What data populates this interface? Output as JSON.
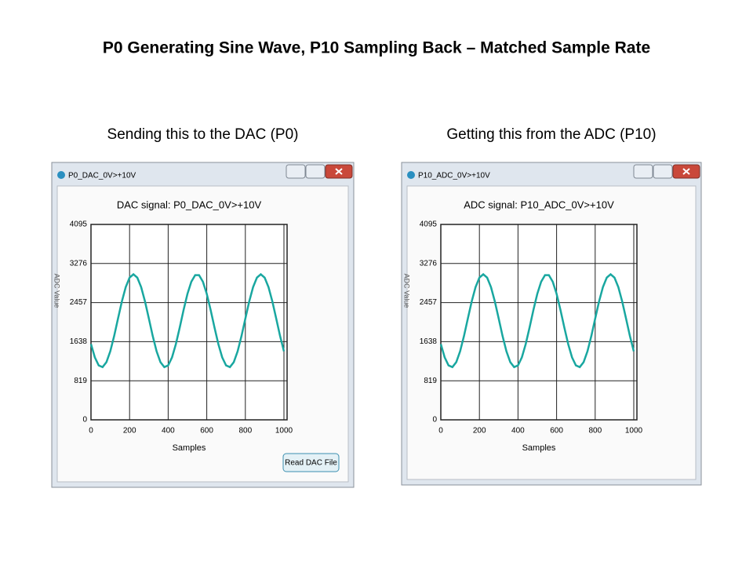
{
  "title": "P0 Generating Sine Wave, P10 Sampling Back – Matched Sample Rate",
  "panels": [
    {
      "caption": "Sending this to the DAC (P0)",
      "window_title": "P0_DAC_0V>+10V",
      "button": "Read DAC File"
    },
    {
      "caption": "Getting this from the ADC (P10)",
      "window_title": "P10_ADC_0V>+10V"
    }
  ],
  "chart_data": [
    {
      "type": "line",
      "title": "DAC signal: P0_DAC_0V>+10V",
      "xlabel": "Samples",
      "ylabel": "ADC Value",
      "x": [
        0,
        20,
        40,
        60,
        80,
        100,
        120,
        140,
        160,
        180,
        200,
        220,
        240,
        260,
        280,
        300,
        320,
        340,
        360,
        380,
        400,
        420,
        440,
        460,
        480,
        500,
        520,
        540,
        560,
        580,
        600,
        620,
        640,
        660,
        680,
        700,
        720,
        740,
        760,
        780,
        800,
        820,
        840,
        860,
        880,
        900,
        920,
        940,
        960,
        980,
        1000
      ],
      "series": [
        {
          "color": "#19a7a0",
          "values": [
            1588,
            1309,
            1140,
            1105,
            1208,
            1436,
            1756,
            2121,
            2480,
            2781,
            2980,
            3050,
            2980,
            2781,
            2480,
            2121,
            1756,
            1436,
            1208,
            1105,
            1140,
            1309,
            1588,
            1936,
            2304,
            2641,
            2895,
            3032,
            3032,
            2895,
            2641,
            2304,
            1936,
            1588,
            1309,
            1140,
            1105,
            1208,
            1436,
            1756,
            2121,
            2480,
            2781,
            2980,
            3050,
            2980,
            2781,
            2480,
            2121,
            1756,
            1436
          ]
        }
      ],
      "xlim": [
        0,
        1000
      ],
      "ylim": [
        0,
        4095
      ],
      "xticks": [
        0,
        200,
        400,
        600,
        800,
        1000
      ],
      "yticks": [
        0,
        819,
        1638,
        2457,
        3276,
        4095
      ],
      "grid": true
    },
    {
      "type": "line",
      "title": "ADC signal: P10_ADC_0V>+10V",
      "xlabel": "Samples",
      "ylabel": "ADC Value",
      "x": [
        0,
        20,
        40,
        60,
        80,
        100,
        120,
        140,
        160,
        180,
        200,
        220,
        240,
        260,
        280,
        300,
        320,
        340,
        360,
        380,
        400,
        420,
        440,
        460,
        480,
        500,
        520,
        540,
        560,
        580,
        600,
        620,
        640,
        660,
        680,
        700,
        720,
        740,
        760,
        780,
        800,
        820,
        840,
        860,
        880,
        900,
        920,
        940,
        960,
        980,
        1000
      ],
      "series": [
        {
          "color": "#19a7a0",
          "values": [
            1588,
            1309,
            1140,
            1105,
            1208,
            1436,
            1756,
            2121,
            2480,
            2781,
            2980,
            3050,
            2980,
            2781,
            2480,
            2121,
            1756,
            1436,
            1208,
            1105,
            1140,
            1309,
            1588,
            1936,
            2304,
            2641,
            2895,
            3032,
            3032,
            2895,
            2641,
            2304,
            1936,
            1588,
            1309,
            1140,
            1105,
            1208,
            1436,
            1756,
            2121,
            2480,
            2781,
            2980,
            3050,
            2980,
            2781,
            2480,
            2121,
            1756,
            1436
          ]
        }
      ],
      "xlim": [
        0,
        1000
      ],
      "ylim": [
        0,
        4095
      ],
      "xticks": [
        0,
        200,
        400,
        600,
        800,
        1000
      ],
      "yticks": [
        0,
        819,
        1638,
        2457,
        3276,
        4095
      ],
      "grid": true
    }
  ]
}
